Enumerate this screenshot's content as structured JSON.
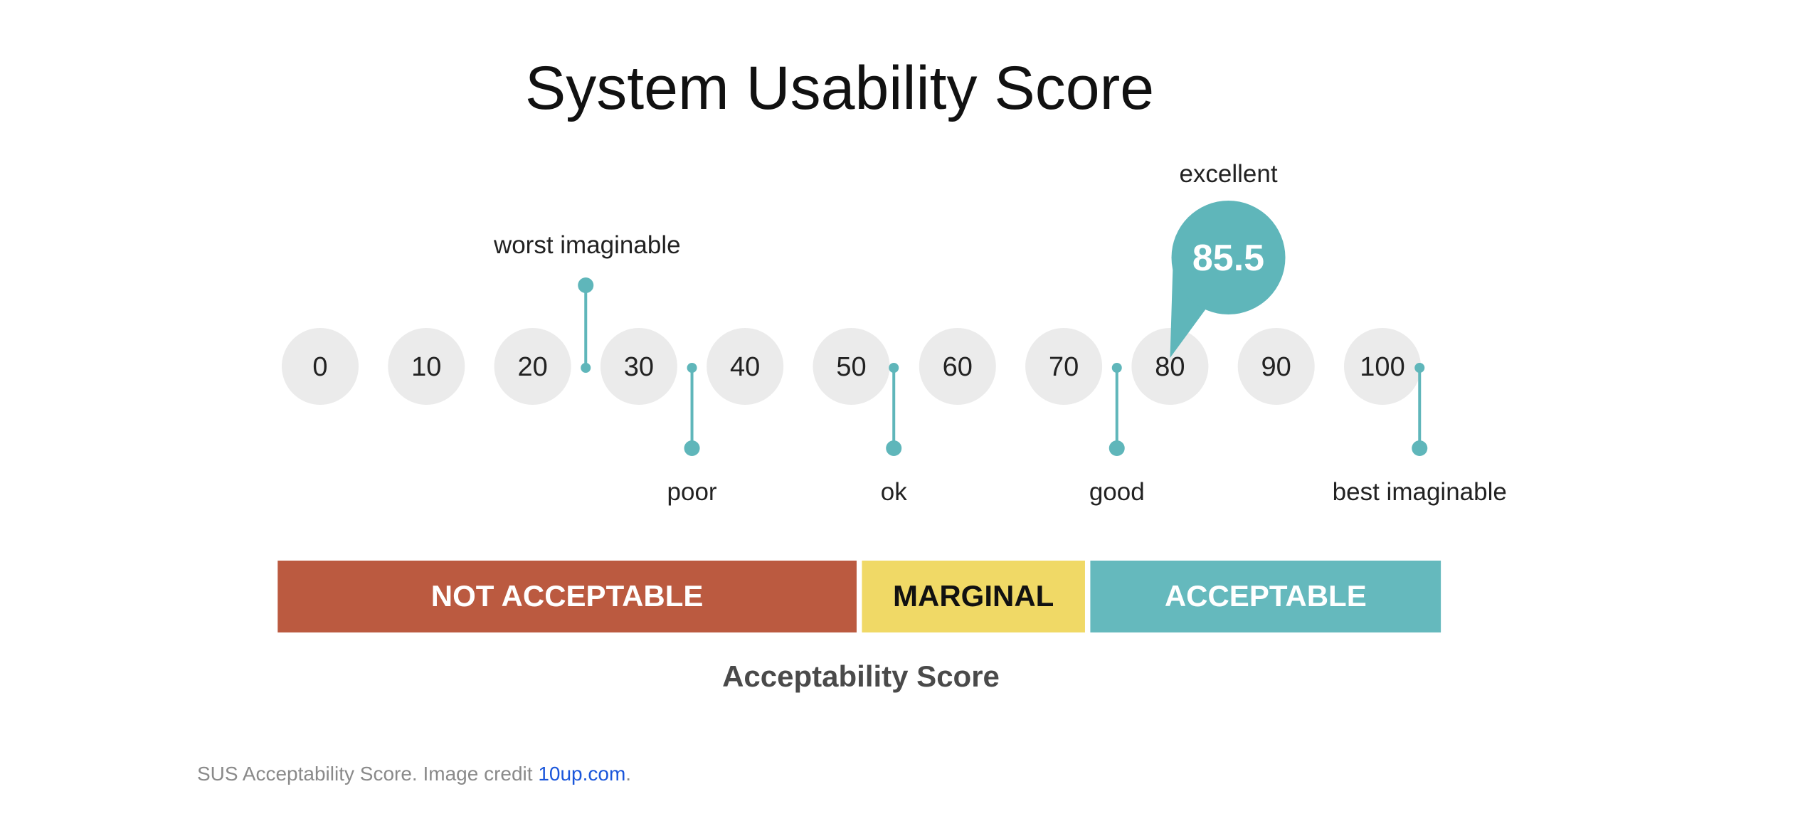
{
  "title": "System Usability Score",
  "chart_data": {
    "type": "scale",
    "scale": {
      "min": 0,
      "max": 100,
      "ticks": [
        0,
        10,
        20,
        30,
        40,
        50,
        60,
        70,
        80,
        90,
        100
      ]
    },
    "adjectives": [
      {
        "label": "worst imaginable",
        "value": 25,
        "side": "above"
      },
      {
        "label": "poor",
        "value": 35,
        "side": "below"
      },
      {
        "label": "ok",
        "value": 54,
        "side": "below"
      },
      {
        "label": "good",
        "value": 75,
        "side": "below"
      },
      {
        "label": "best imaginable",
        "value": 103.5,
        "side": "below"
      }
    ],
    "marker": {
      "label": "excellent",
      "value": 85.5,
      "display": "85.5"
    },
    "acceptability": {
      "title": "Acceptability Score",
      "bands": [
        {
          "label": "NOT ACCEPTABLE",
          "from": -4,
          "to": 50.5,
          "color": "#bb5a40",
          "text_color": "#ffffff"
        },
        {
          "label": "MARGINAL",
          "from": 51,
          "to": 72,
          "color": "#f0d966",
          "text_color": "#111111"
        },
        {
          "label": "ACCEPTABLE",
          "from": 72.5,
          "to": 105.5,
          "color": "#65b9bd",
          "text_color": "#ffffff"
        }
      ]
    },
    "colors": {
      "accent": "#5fb6ba",
      "circle": "#ebebeb"
    }
  },
  "caption": {
    "text": "SUS Acceptability Score. Image credit ",
    "link_text": "10up.com",
    "suffix": "."
  }
}
